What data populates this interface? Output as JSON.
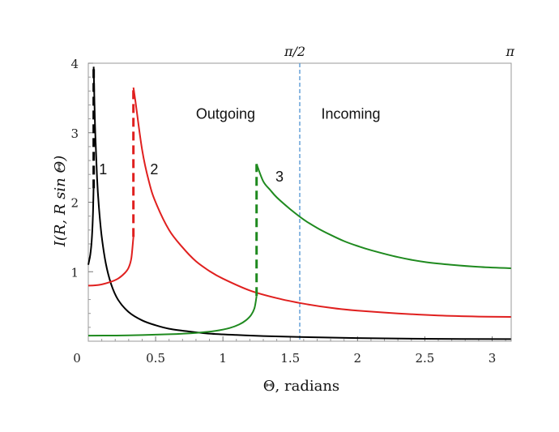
{
  "chart_data": {
    "type": "line",
    "title": "",
    "xlabel": "Θ, radians",
    "ylabel": "I(R, R sin Θ)",
    "xlim": [
      0,
      3.1416
    ],
    "ylim": [
      0,
      4
    ],
    "x_ticks": [
      {
        "value": 0,
        "label": "0"
      },
      {
        "value": 0.5,
        "label": "0.5"
      },
      {
        "value": 1,
        "label": "1"
      },
      {
        "value": 1.5,
        "label": "1.5"
      },
      {
        "value": 2,
        "label": "2"
      },
      {
        "value": 2.5,
        "label": "2.5"
      },
      {
        "value": 3,
        "label": "3"
      }
    ],
    "y_ticks": [
      {
        "value": 1,
        "label": "1"
      },
      {
        "value": 2,
        "label": "2"
      },
      {
        "value": 3,
        "label": "3"
      },
      {
        "value": 4,
        "label": "4"
      }
    ],
    "top_labels": [
      {
        "value": 1.5708,
        "label": "π/2"
      },
      {
        "value": 3.1416,
        "label": "π"
      }
    ],
    "vline": {
      "x": 1.5708,
      "color": "#5b9bd5",
      "style": "dashed"
    },
    "region_labels": [
      {
        "label": "Outgoing",
        "x": 0.8,
        "y": 3.2
      },
      {
        "label": "Incoming",
        "x": 1.73,
        "y": 3.2
      }
    ],
    "series": [
      {
        "label": "1",
        "color": "#000000",
        "label_pos": {
          "x": 0.08,
          "y": 2.4
        },
        "curve_left": {
          "x": [
            0.0,
            0.015,
            0.025,
            0.033,
            0.037,
            0.039
          ],
          "y": [
            1.1,
            1.25,
            1.45,
            1.75,
            2.0,
            2.2
          ]
        },
        "jump": {
          "x": 0.04,
          "y_from": 2.2,
          "y_to": 3.95
        },
        "curve_right": {
          "x": [
            0.04,
            0.05,
            0.065,
            0.08,
            0.1,
            0.13,
            0.17,
            0.22,
            0.3,
            0.4,
            0.5,
            0.6,
            0.75,
            0.9,
            1.1,
            1.3,
            1.6,
            2.0,
            2.5,
            3.14
          ],
          "y": [
            3.95,
            3.1,
            2.35,
            1.9,
            1.5,
            1.12,
            0.82,
            0.6,
            0.42,
            0.3,
            0.23,
            0.18,
            0.14,
            0.11,
            0.09,
            0.075,
            0.06,
            0.045,
            0.035,
            0.03
          ]
        }
      },
      {
        "label": "2",
        "color": "#e0201f",
        "label_pos": {
          "x": 0.46,
          "y": 2.4
        },
        "curve_left": {
          "x": [
            0.0,
            0.08,
            0.16,
            0.22,
            0.27,
            0.3,
            0.32,
            0.335
          ],
          "y": [
            0.8,
            0.81,
            0.85,
            0.9,
            0.98,
            1.06,
            1.2,
            1.5
          ]
        },
        "jump": {
          "x": 0.335,
          "y_from": 1.5,
          "y_to": 3.65
        },
        "curve_right": {
          "x": [
            0.335,
            0.35,
            0.4,
            0.45,
            0.5,
            0.6,
            0.7,
            0.8,
            0.9,
            1.0,
            1.2,
            1.4,
            1.6,
            1.8,
            2.0,
            2.3,
            2.6,
            2.9,
            3.14
          ],
          "y": [
            3.65,
            3.45,
            2.75,
            2.3,
            2.0,
            1.6,
            1.35,
            1.15,
            1.01,
            0.9,
            0.73,
            0.62,
            0.54,
            0.48,
            0.44,
            0.4,
            0.37,
            0.355,
            0.35
          ]
        }
      },
      {
        "label": "3",
        "color": "#1f8a1f",
        "label_pos": {
          "x": 1.39,
          "y": 2.3
        },
        "curve_left": {
          "x": [
            0.0,
            0.3,
            0.6,
            0.8,
            0.95,
            1.05,
            1.12,
            1.17,
            1.21,
            1.235,
            1.25
          ],
          "y": [
            0.08,
            0.085,
            0.1,
            0.12,
            0.15,
            0.19,
            0.24,
            0.3,
            0.38,
            0.48,
            0.65
          ]
        },
        "jump": {
          "x": 1.25,
          "y_from": 0.65,
          "y_to": 2.55
        },
        "curve_right": {
          "x": [
            1.25,
            1.3,
            1.35,
            1.4,
            1.5,
            1.6,
            1.7,
            1.8,
            1.9,
            2.0,
            2.1,
            2.3,
            2.5,
            2.7,
            2.9,
            3.14
          ],
          "y": [
            2.55,
            2.3,
            2.18,
            2.07,
            1.9,
            1.75,
            1.63,
            1.53,
            1.44,
            1.37,
            1.31,
            1.21,
            1.14,
            1.1,
            1.07,
            1.05
          ]
        }
      }
    ]
  }
}
